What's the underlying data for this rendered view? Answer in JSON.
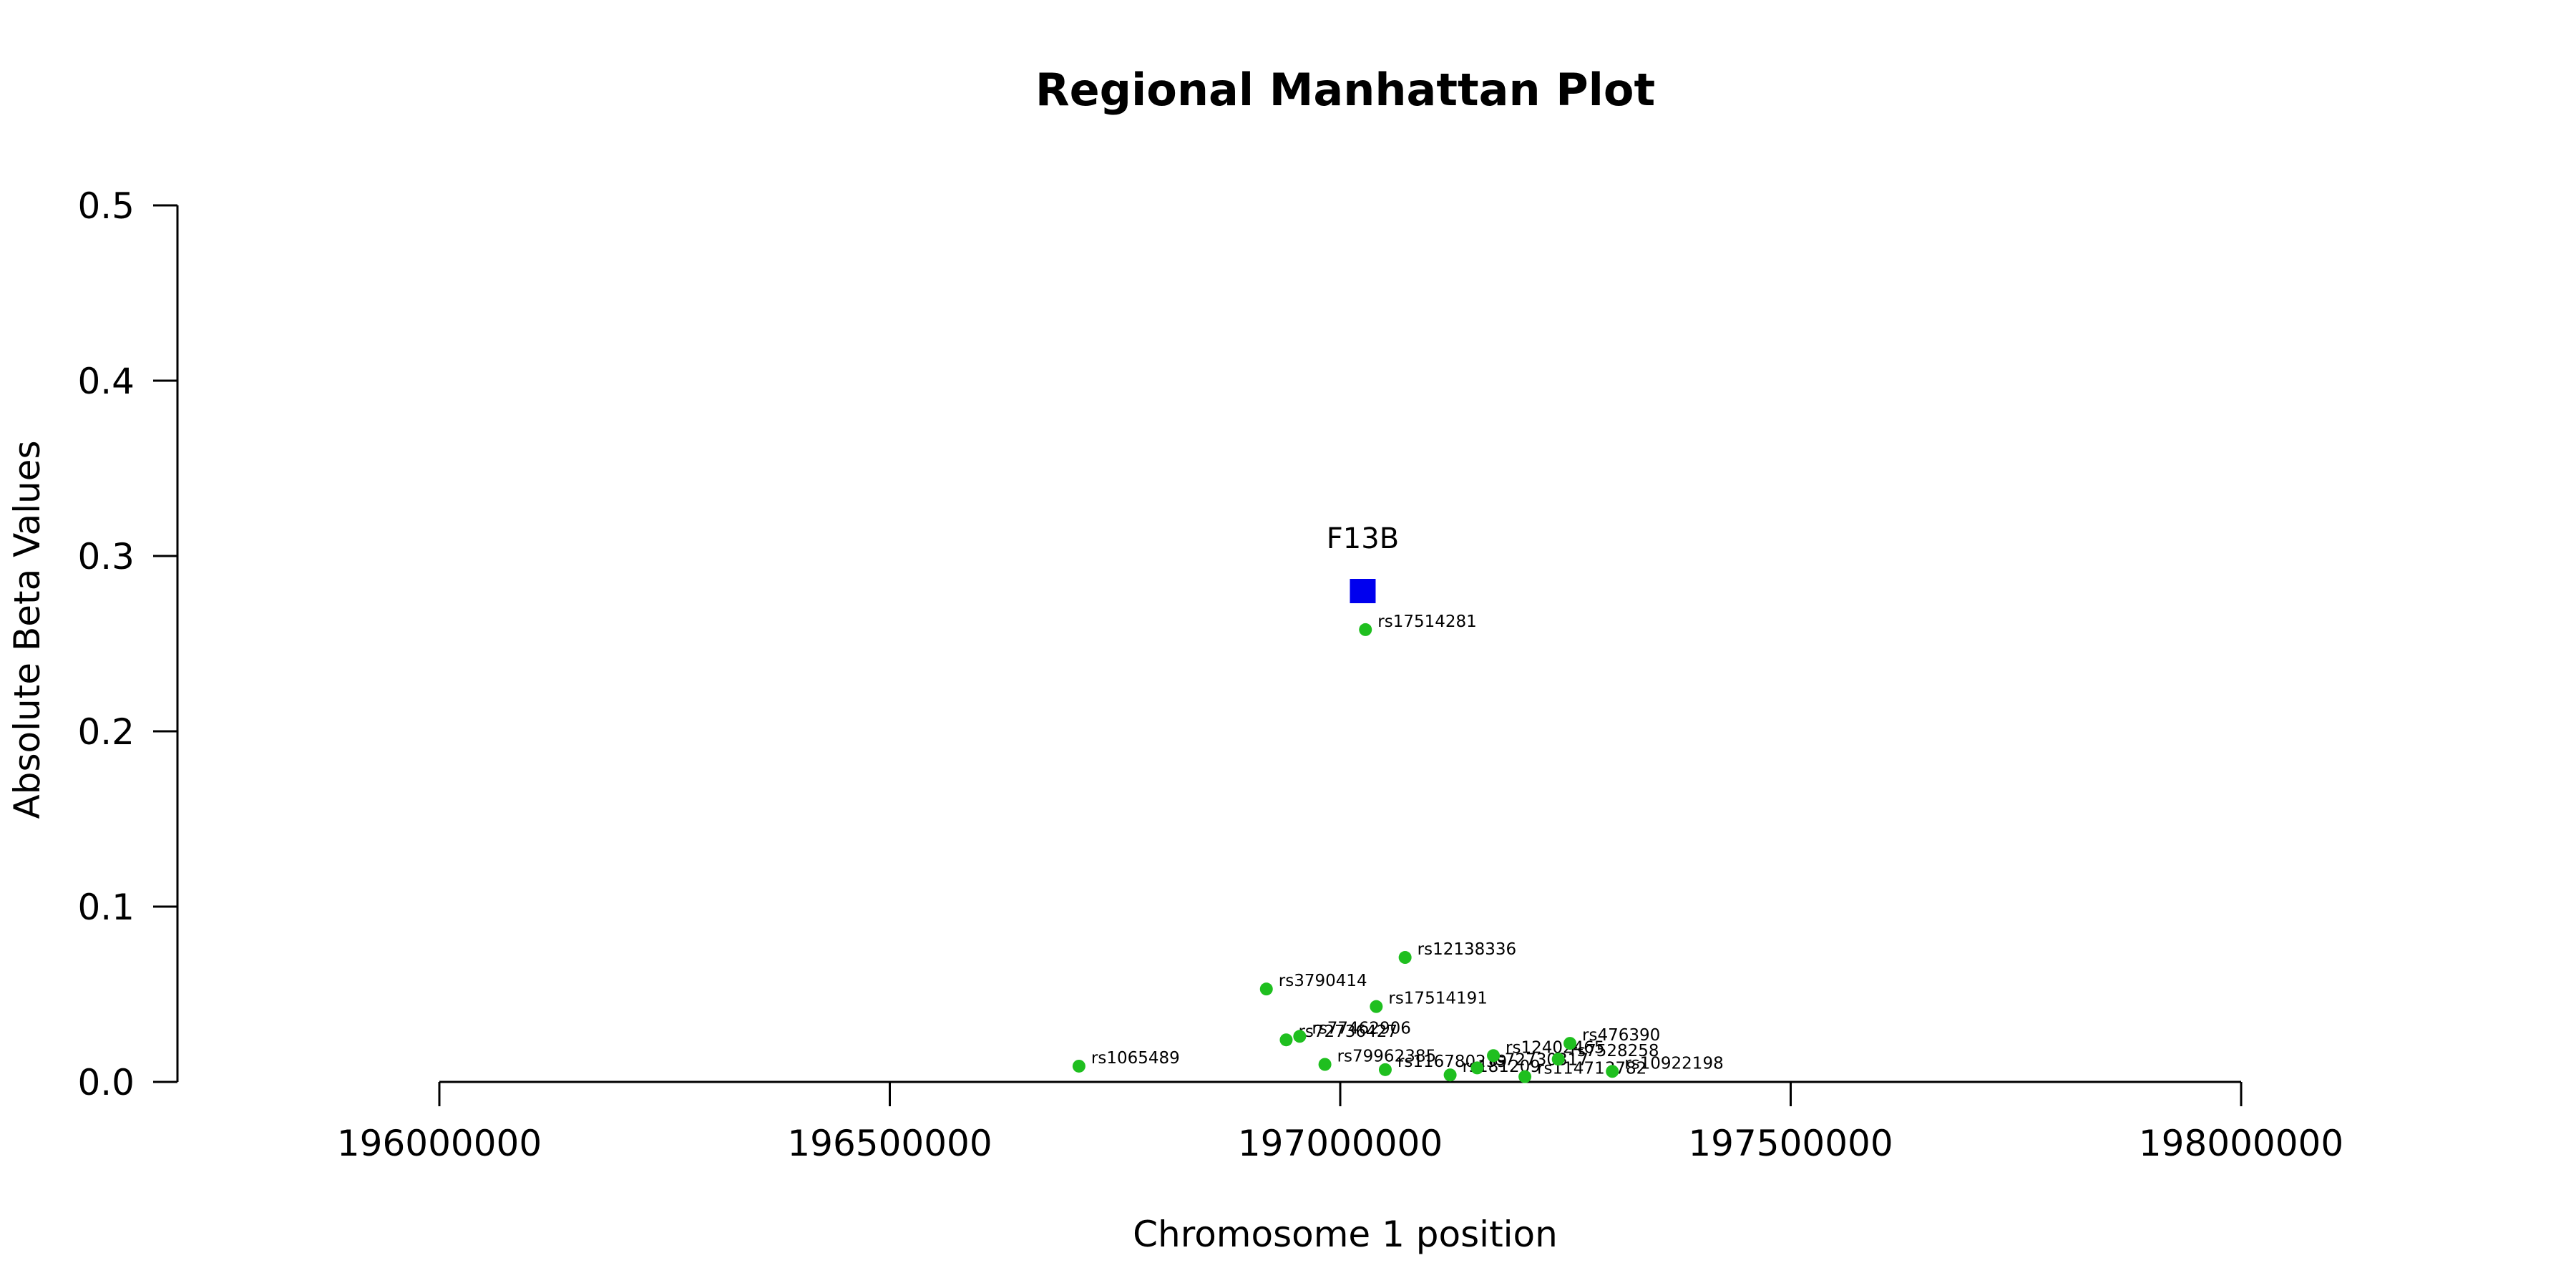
{
  "chart_data": {
    "type": "scatter",
    "title": "Regional Manhattan Plot",
    "xlabel": "Chromosome 1 position",
    "ylabel": "Absolute Beta Values",
    "xlim": [
      196000000,
      198000000
    ],
    "ylim": [
      0,
      0.5
    ],
    "x_ticks": [
      196000000,
      196500000,
      197000000,
      197500000,
      198000000
    ],
    "y_ticks": [
      0.0,
      0.1,
      0.2,
      0.3,
      0.4,
      0.5
    ],
    "x_tick_labels": [
      "196000000",
      "196500000",
      "197000000",
      "197500000",
      "198000000"
    ],
    "y_tick_labels": [
      "0.0",
      "0.1",
      "0.2",
      "0.3",
      "0.4",
      "0.5"
    ],
    "grid": false,
    "point_color": "#1fbf1f",
    "gene_color": "#0000ee",
    "gene": {
      "label": "F13B",
      "x": 197025000,
      "y": 0.28
    },
    "points": [
      {
        "label": "rs1065489",
        "x": 196710000,
        "y": 0.009
      },
      {
        "label": "rs3790414",
        "x": 196918000,
        "y": 0.053
      },
      {
        "label": "rs72736427",
        "x": 196940000,
        "y": 0.024
      },
      {
        "label": "rs77462906",
        "x": 196955000,
        "y": 0.026
      },
      {
        "label": "rs79962385",
        "x": 196983000,
        "y": 0.01
      },
      {
        "label": "rs17514281",
        "x": 197028000,
        "y": 0.258
      },
      {
        "label": "rs17514191",
        "x": 197040000,
        "y": 0.043
      },
      {
        "label": "rs116780239",
        "x": 197050000,
        "y": 0.007
      },
      {
        "label": "rs12138336",
        "x": 197072000,
        "y": 0.071
      },
      {
        "label": "rs181209",
        "x": 197122000,
        "y": 0.004
      },
      {
        "label": "rs72730317",
        "x": 197152000,
        "y": 0.008
      },
      {
        "label": "rs12402465",
        "x": 197170000,
        "y": 0.015
      },
      {
        "label": "rs114713782",
        "x": 197205000,
        "y": 0.003
      },
      {
        "label": "rs7528258",
        "x": 197242000,
        "y": 0.013
      },
      {
        "label": "rs476390",
        "x": 197255000,
        "y": 0.022
      },
      {
        "label": "rs10922198",
        "x": 197302000,
        "y": 0.006
      }
    ]
  }
}
